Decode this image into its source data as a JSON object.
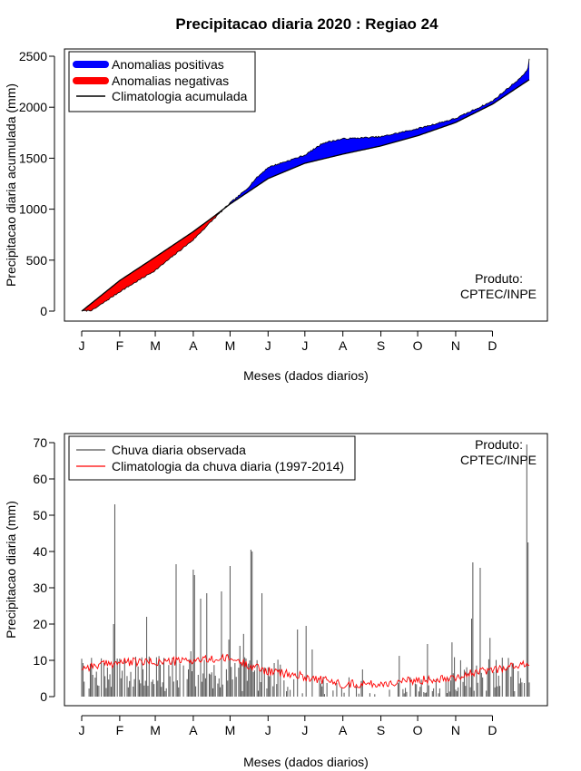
{
  "title": "Precipitacao diaria 2020 : Regiao 24",
  "colors": {
    "positive": "#0000ff",
    "negative": "#ff0000",
    "clim_line": "#000000",
    "obs_bar": "#555555",
    "clim_daily": "#ff0000"
  },
  "chart_data": [
    {
      "type": "area",
      "xlabel": "Meses (dados diarios)",
      "ylabel": "Precipitacao diaria acumulada (mm)",
      "xlim": [
        1,
        366
      ],
      "ylim": [
        0,
        2500
      ],
      "x_ticks": [
        1,
        32,
        61,
        92,
        122,
        153,
        183,
        214,
        245,
        275,
        306,
        336
      ],
      "x_tick_labels": [
        "J",
        "F",
        "M",
        "A",
        "M",
        "J",
        "J",
        "A",
        "S",
        "O",
        "N",
        "D"
      ],
      "y_ticks": [
        0,
        500,
        1000,
        1500,
        2000,
        2500
      ],
      "y_tick_labels": [
        "0",
        "500",
        "1000",
        "1500",
        "2000",
        "2500"
      ],
      "legend": {
        "position": "top-left",
        "items": [
          {
            "label": "Anomalias positivas",
            "color": "#0000ff"
          },
          {
            "label": "Anomalias negativas",
            "color": "#ff0000"
          },
          {
            "label": "Climatologia acumulada",
            "color": "#000000"
          }
        ]
      },
      "annotation": {
        "line1": "Produto:",
        "line2": "CPTEC/INPE",
        "position": "bottom-right"
      },
      "climatology_keypoints": {
        "day": [
          1,
          32,
          61,
          92,
          110,
          122,
          153,
          183,
          214,
          245,
          275,
          306,
          336,
          366
        ],
        "value": [
          0,
          300,
          530,
          780,
          940,
          1050,
          1300,
          1450,
          1540,
          1620,
          1720,
          1850,
          2030,
          2270
        ]
      },
      "observed_keypoints": {
        "day": [
          1,
          10,
          32,
          61,
          92,
          110,
          122,
          135,
          143,
          153,
          183,
          198,
          214,
          245,
          275,
          306,
          336,
          360,
          365,
          366
        ],
        "value": [
          0,
          10,
          190,
          400,
          700,
          920,
          1060,
          1190,
          1300,
          1410,
          1530,
          1650,
          1690,
          1710,
          1790,
          1890,
          2060,
          2300,
          2380,
          2470
        ]
      }
    },
    {
      "type": "bar",
      "xlabel": "Meses (dados diarios)",
      "ylabel": "Precipitacao diaria (mm)",
      "xlim": [
        1,
        366
      ],
      "ylim": [
        0,
        70
      ],
      "x_ticks": [
        1,
        32,
        61,
        92,
        122,
        153,
        183,
        214,
        245,
        275,
        306,
        336
      ],
      "x_tick_labels": [
        "J",
        "F",
        "M",
        "A",
        "M",
        "J",
        "J",
        "A",
        "S",
        "O",
        "N",
        "D"
      ],
      "y_ticks": [
        0,
        10,
        20,
        30,
        40,
        50,
        60,
        70
      ],
      "y_tick_labels": [
        "0",
        "10",
        "20",
        "30",
        "40",
        "50",
        "60",
        "70"
      ],
      "legend": {
        "position": "top-left",
        "items": [
          {
            "label": "Chuva diaria observada",
            "color": "#555555"
          },
          {
            "label": "Climatologia da chuva diaria (1997-2014)",
            "color": "#ff0000"
          }
        ]
      },
      "annotation": {
        "line1": "Produto:",
        "line2": "CPTEC/INPE",
        "position": "top-right"
      },
      "notable_peaks": {
        "day": [
          27,
          28,
          54,
          78,
          90,
          92,
          93,
          98,
          103,
          115,
          122,
          130,
          139,
          140,
          148,
          177,
          184,
          189,
          198,
          230,
          283,
          319,
          320,
          326,
          364,
          365
        ],
        "value": [
          20,
          53,
          22,
          36.5,
          12.5,
          35,
          33.5,
          27,
          28.5,
          29,
          36,
          14,
          40.5,
          40,
          28.5,
          18.5,
          19.5,
          13,
          5.5,
          7.5,
          14.5,
          21.5,
          37,
          35.5,
          69.5,
          42.5
        ]
      },
      "clim_daily_keypoints": {
        "day": [
          1,
          32,
          61,
          92,
          122,
          153,
          183,
          214,
          245,
          275,
          306,
          336,
          366
        ],
        "value": [
          8,
          9.5,
          9.5,
          10,
          10.5,
          7,
          5.5,
          3.5,
          3.5,
          4.5,
          5.5,
          7.5,
          9
        ]
      }
    }
  ]
}
